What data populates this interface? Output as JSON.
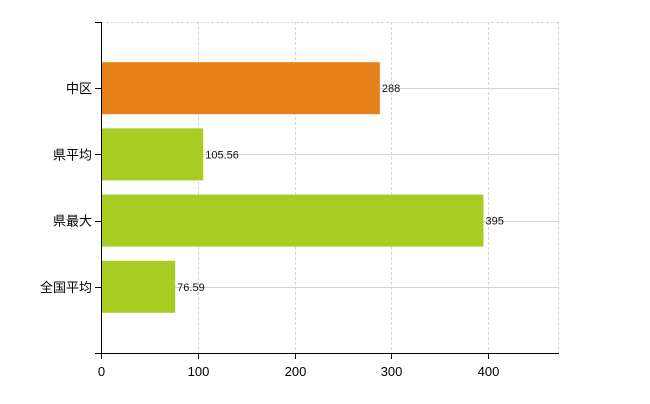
{
  "chart_data": {
    "type": "bar",
    "orientation": "horizontal",
    "categories": [
      "中区",
      "県平均",
      "県最大",
      "全国平均"
    ],
    "values": [
      288,
      105.56,
      395,
      76.59
    ],
    "data_labels": [
      "288",
      "105.56",
      "395",
      "76.59"
    ],
    "bar_colors": [
      "#E8801A",
      "#A8CC22",
      "#A8CC22",
      "#A8CC22"
    ],
    "xlim": [
      0,
      473
    ],
    "xticks": [
      0,
      100,
      200,
      300,
      400
    ],
    "xtick_labels": [
      "0",
      "100",
      "200",
      "300",
      "400"
    ],
    "grid": true,
    "title": "",
    "xlabel": "",
    "ylabel": ""
  }
}
